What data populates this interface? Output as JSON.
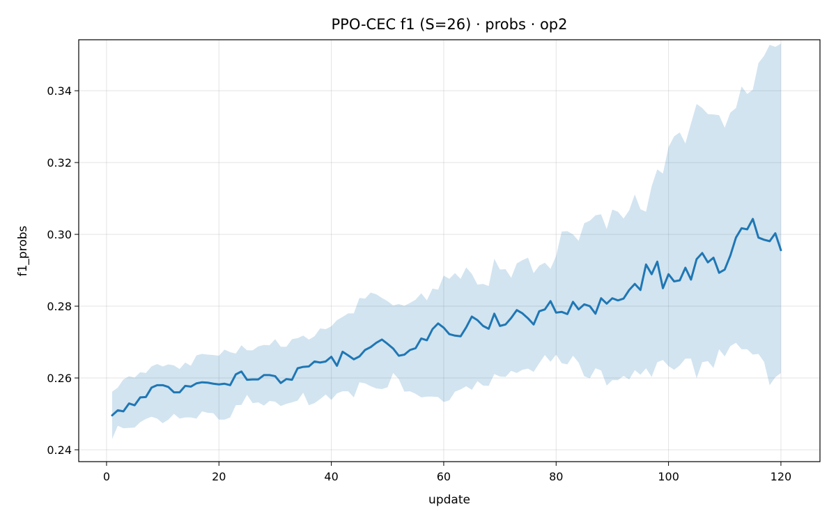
{
  "chart_data": {
    "type": "line",
    "title": "PPO-CEC f1 (S=26) · probs · op2",
    "xlabel": "update",
    "ylabel": "f1_probs",
    "xlim": [
      -4.95,
      126.95
    ],
    "ylim": [
      0.2367,
      0.3542
    ],
    "grid": true,
    "xticks": [
      0,
      20,
      40,
      60,
      80,
      100,
      120
    ],
    "xtick_labels": [
      "0",
      "20",
      "40",
      "60",
      "80",
      "100",
      "120"
    ],
    "yticks": [
      0.24,
      0.26,
      0.28,
      0.3,
      0.32,
      0.34
    ],
    "ytick_labels": [
      "0.24",
      "0.26",
      "0.28",
      "0.30",
      "0.32",
      "0.34"
    ],
    "colors": {
      "line": "#1f77b4",
      "band": "#1f77b4"
    },
    "series": [
      {
        "band": "shaded",
        "x_start": 1,
        "mean": [
          0.2496,
          0.251,
          0.2507,
          0.2529,
          0.2524,
          0.2546,
          0.2547,
          0.2573,
          0.258,
          0.258,
          0.2575,
          0.256,
          0.256,
          0.2578,
          0.2576,
          0.2585,
          0.2588,
          0.2587,
          0.2584,
          0.2582,
          0.2584,
          0.258,
          0.261,
          0.2618,
          0.2595,
          0.2596,
          0.2596,
          0.2608,
          0.2608,
          0.2605,
          0.2586,
          0.2597,
          0.2595,
          0.2627,
          0.2631,
          0.2632,
          0.2646,
          0.2643,
          0.2646,
          0.2659,
          0.2634,
          0.2673,
          0.2663,
          0.2652,
          0.266,
          0.2678,
          0.2686,
          0.2698,
          0.2707,
          0.2695,
          0.2682,
          0.2662,
          0.2665,
          0.2678,
          0.2683,
          0.271,
          0.2705,
          0.2736,
          0.2752,
          0.274,
          0.2722,
          0.2718,
          0.2716,
          0.2741,
          0.2771,
          0.2761,
          0.2745,
          0.2737,
          0.2779,
          0.2745,
          0.2749,
          0.2767,
          0.2789,
          0.278,
          0.2766,
          0.2749,
          0.2786,
          0.2791,
          0.2814,
          0.2782,
          0.2784,
          0.2778,
          0.2812,
          0.2791,
          0.2805,
          0.28,
          0.2779,
          0.2822,
          0.2807,
          0.2822,
          0.2816,
          0.2821,
          0.2845,
          0.2862,
          0.2845,
          0.2916,
          0.2889,
          0.2924,
          0.285,
          0.2889,
          0.2869,
          0.2872,
          0.2907,
          0.2874,
          0.2931,
          0.2948,
          0.2922,
          0.2935,
          0.2893,
          0.2902,
          0.2941,
          0.2991,
          0.3017,
          0.3014,
          0.3043,
          0.2991,
          0.2985,
          0.2981,
          0.3003,
          0.2956
        ],
        "upper": [
          0.2562,
          0.2573,
          0.2596,
          0.2605,
          0.2601,
          0.2616,
          0.2614,
          0.2632,
          0.2639,
          0.2632,
          0.2638,
          0.2635,
          0.2625,
          0.2643,
          0.2634,
          0.2663,
          0.2667,
          0.2665,
          0.2664,
          0.2662,
          0.2679,
          0.2672,
          0.2668,
          0.2691,
          0.2677,
          0.2677,
          0.2688,
          0.2692,
          0.2691,
          0.2708,
          0.2687,
          0.2687,
          0.2708,
          0.2711,
          0.2718,
          0.2707,
          0.2716,
          0.2738,
          0.2736,
          0.2744,
          0.2761,
          0.277,
          0.278,
          0.278,
          0.2823,
          0.2821,
          0.2838,
          0.2833,
          0.2823,
          0.2814,
          0.2802,
          0.2806,
          0.2801,
          0.2809,
          0.2818,
          0.2836,
          0.2816,
          0.2849,
          0.2846,
          0.2885,
          0.2876,
          0.2892,
          0.2876,
          0.2908,
          0.289,
          0.286,
          0.2862,
          0.2856,
          0.2932,
          0.2902,
          0.2903,
          0.2879,
          0.2919,
          0.2928,
          0.2935,
          0.2892,
          0.2913,
          0.2921,
          0.2904,
          0.294,
          0.3008,
          0.3009,
          0.3,
          0.2982,
          0.3031,
          0.3038,
          0.3053,
          0.3056,
          0.3015,
          0.3069,
          0.3063,
          0.3044,
          0.3067,
          0.3111,
          0.307,
          0.3063,
          0.3134,
          0.3181,
          0.3169,
          0.3243,
          0.3273,
          0.3284,
          0.3253,
          0.3309,
          0.3363,
          0.3352,
          0.3335,
          0.3334,
          0.3332,
          0.3297,
          0.3339,
          0.3352,
          0.3412,
          0.3391,
          0.3403,
          0.3477,
          0.3497,
          0.3528,
          0.3522,
          0.3531
        ],
        "lower": [
          0.243,
          0.2467,
          0.246,
          0.2461,
          0.2462,
          0.2477,
          0.2486,
          0.2492,
          0.2487,
          0.2474,
          0.2484,
          0.25,
          0.2487,
          0.249,
          0.249,
          0.2487,
          0.2507,
          0.2503,
          0.2502,
          0.2484,
          0.2484,
          0.249,
          0.2524,
          0.2525,
          0.2553,
          0.253,
          0.2532,
          0.2523,
          0.2536,
          0.2534,
          0.2522,
          0.2528,
          0.2532,
          0.2537,
          0.2559,
          0.2524,
          0.253,
          0.2541,
          0.2554,
          0.2539,
          0.2557,
          0.2563,
          0.2563,
          0.2546,
          0.2588,
          0.2585,
          0.2577,
          0.2571,
          0.2569,
          0.2574,
          0.2614,
          0.2597,
          0.2562,
          0.2563,
          0.2556,
          0.2546,
          0.2548,
          0.2548,
          0.2547,
          0.2533,
          0.2538,
          0.2562,
          0.2568,
          0.2577,
          0.2567,
          0.2591,
          0.2579,
          0.2578,
          0.2611,
          0.2604,
          0.2603,
          0.262,
          0.2614,
          0.2623,
          0.2626,
          0.2617,
          0.2641,
          0.2664,
          0.2645,
          0.2665,
          0.2641,
          0.2638,
          0.2662,
          0.2643,
          0.2605,
          0.2599,
          0.2627,
          0.2621,
          0.2579,
          0.2594,
          0.2594,
          0.2606,
          0.2596,
          0.2622,
          0.2609,
          0.2627,
          0.2603,
          0.2644,
          0.265,
          0.2633,
          0.2623,
          0.2635,
          0.2654,
          0.2654,
          0.2599,
          0.2644,
          0.2647,
          0.2628,
          0.268,
          0.266,
          0.2689,
          0.2698,
          0.268,
          0.268,
          0.2665,
          0.2667,
          0.2645,
          0.258,
          0.2602,
          0.2614
        ]
      }
    ]
  }
}
